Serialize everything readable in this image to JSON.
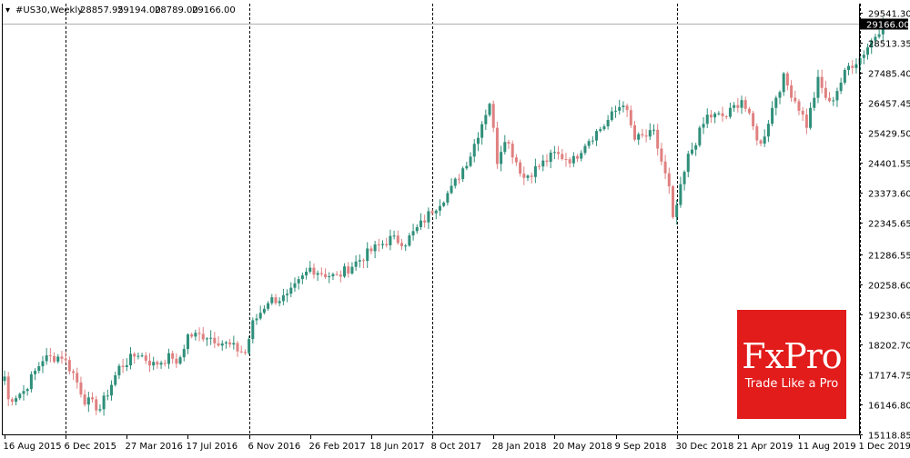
{
  "header": {
    "symbol": "#US30,Weekly",
    "ohlc": [
      "28857.95",
      "29194.00",
      "28789.00",
      "29166.00"
    ]
  },
  "colors": {
    "bull": "#2f8f7a",
    "bear": "#e08080",
    "axis": "#000000",
    "grid_separator": "#000000",
    "price_line": "#b0b0b0",
    "price_label_bg": "#000000",
    "logo_bg": "#e21b1b"
  },
  "logo": {
    "name": "FxPro",
    "tagline": "Trade Like a Pro"
  },
  "chart_data": {
    "type": "candlestick",
    "interval": "Weekly",
    "ylim": [
      15000,
      29700
    ],
    "y_ticks": [
      "29541.30",
      "28513.35",
      "27485.40",
      "26457.45",
      "25429.50",
      "24401.55",
      "23373.60",
      "22345.65",
      "21286.55",
      "20258.60",
      "19230.65",
      "18202.70",
      "17174.75",
      "16146.80",
      "15118.85"
    ],
    "x_ticks": [
      "16 Aug 2015",
      "6 Dec 2015",
      "27 Mar 2016",
      "17 Jul 2016",
      "6 Nov 2016",
      "26 Feb 2017",
      "18 Jun 2017",
      "8 Oct 2017",
      "28 Jan 2018",
      "20 May 2018",
      "9 Sep 2018",
      "30 Dec 2018",
      "21 Apr 2019",
      "11 Aug 2019",
      "1 Dec 2019"
    ],
    "period_separators": [
      "2015-12-06",
      "2016-11-06",
      "2017-10-08",
      "2018-12-30",
      "2019-12-01"
    ],
    "current_price": "29166.00",
    "grid": false,
    "anchors": [
      {
        "date": "2015-08-16",
        "close": 17100
      },
      {
        "date": "2015-08-23",
        "close": 16300
      },
      {
        "date": "2015-09-20",
        "close": 16600
      },
      {
        "date": "2015-10-25",
        "close": 17700
      },
      {
        "date": "2015-11-29",
        "close": 17800
      },
      {
        "date": "2015-12-20",
        "close": 17200
      },
      {
        "date": "2016-01-10",
        "close": 16300
      },
      {
        "date": "2016-02-07",
        "close": 16000
      },
      {
        "date": "2016-03-13",
        "close": 17400
      },
      {
        "date": "2016-04-17",
        "close": 17900
      },
      {
        "date": "2016-05-15",
        "close": 17500
      },
      {
        "date": "2016-06-19",
        "close": 17800
      },
      {
        "date": "2016-06-26",
        "close": 17400
      },
      {
        "date": "2016-07-17",
        "close": 18500
      },
      {
        "date": "2016-08-21",
        "close": 18500
      },
      {
        "date": "2016-09-25",
        "close": 18200
      },
      {
        "date": "2016-10-30",
        "close": 17900
      },
      {
        "date": "2016-11-13",
        "close": 18900
      },
      {
        "date": "2016-12-11",
        "close": 19700
      },
      {
        "date": "2017-01-15",
        "close": 19800
      },
      {
        "date": "2017-02-26",
        "close": 20800
      },
      {
        "date": "2017-03-26",
        "close": 20600
      },
      {
        "date": "2017-04-16",
        "close": 20500
      },
      {
        "date": "2017-05-21",
        "close": 21000
      },
      {
        "date": "2017-06-18",
        "close": 21400
      },
      {
        "date": "2017-07-23",
        "close": 21800
      },
      {
        "date": "2017-08-20",
        "close": 21700
      },
      {
        "date": "2017-09-17",
        "close": 22300
      },
      {
        "date": "2017-10-08",
        "close": 22800
      },
      {
        "date": "2017-11-12",
        "close": 23500
      },
      {
        "date": "2017-12-17",
        "close": 24700
      },
      {
        "date": "2018-01-21",
        "close": 26500
      },
      {
        "date": "2018-02-04",
        "close": 24500
      },
      {
        "date": "2018-02-18",
        "close": 25300
      },
      {
        "date": "2018-03-25",
        "close": 23900
      },
      {
        "date": "2018-04-22",
        "close": 24300
      },
      {
        "date": "2018-05-20",
        "close": 24700
      },
      {
        "date": "2018-06-24",
        "close": 24500
      },
      {
        "date": "2018-07-15",
        "close": 25100
      },
      {
        "date": "2018-08-19",
        "close": 25700
      },
      {
        "date": "2018-09-23",
        "close": 26500
      },
      {
        "date": "2018-10-14",
        "close": 25200
      },
      {
        "date": "2018-11-18",
        "close": 25400
      },
      {
        "date": "2018-12-16",
        "close": 23500
      },
      {
        "date": "2018-12-23",
        "close": 22400
      },
      {
        "date": "2019-01-20",
        "close": 24600
      },
      {
        "date": "2019-02-24",
        "close": 26000
      },
      {
        "date": "2019-03-31",
        "close": 26000
      },
      {
        "date": "2019-04-28",
        "close": 26600
      },
      {
        "date": "2019-05-19",
        "close": 25600
      },
      {
        "date": "2019-06-02",
        "close": 25000
      },
      {
        "date": "2019-06-30",
        "close": 26700
      },
      {
        "date": "2019-07-14",
        "close": 27300
      },
      {
        "date": "2019-08-11",
        "close": 26300
      },
      {
        "date": "2019-08-25",
        "close": 25700
      },
      {
        "date": "2019-09-15",
        "close": 27200
      },
      {
        "date": "2019-10-06",
        "close": 26400
      },
      {
        "date": "2019-11-10",
        "close": 27700
      },
      {
        "date": "2019-12-01",
        "close": 28000
      },
      {
        "date": "2020-01-12",
        "close": 29166
      }
    ]
  }
}
